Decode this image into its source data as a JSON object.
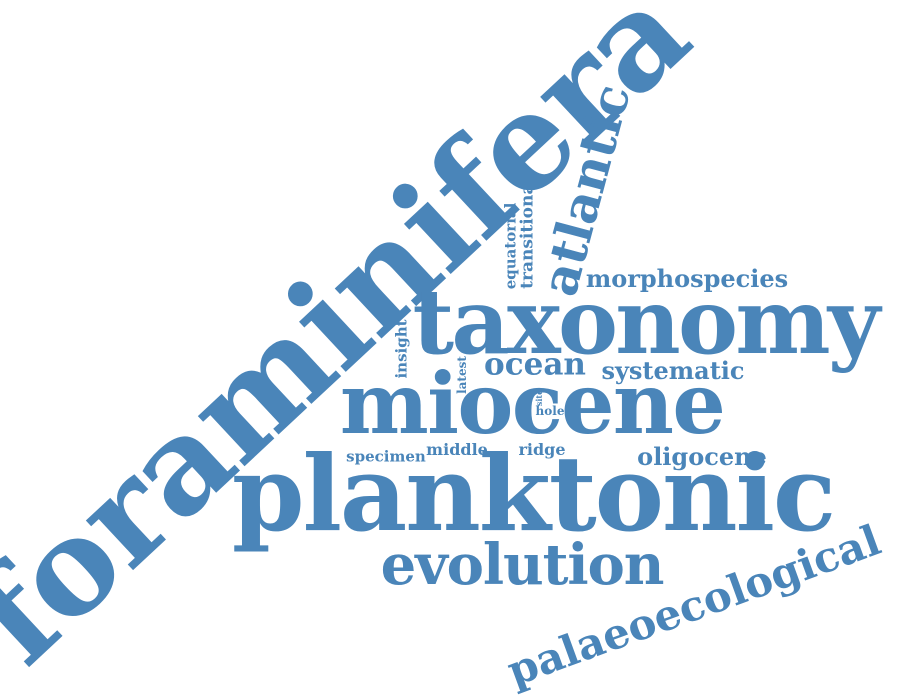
{
  "word_cloud": {
    "color": "#4a85b9",
    "words": {
      "foraminifera": "foraminifera",
      "planktonic": "planktonic",
      "taxonomy": "taxonomy",
      "miocene": "miocene",
      "evolution": "evolution",
      "palaeoecological": "palaeoecological",
      "atlantic": "atlantic",
      "morphospecies": "morphospecies",
      "ocean": "ocean",
      "systematic": "systematic",
      "oligocene": "oligocene",
      "middle": "middle",
      "ridge": "ridge",
      "specimen": "specimen",
      "transitional": "transitional",
      "equatorial": "equatorial",
      "insight": "insight",
      "latest": "latest",
      "hole": "hole",
      "site": "site"
    }
  }
}
